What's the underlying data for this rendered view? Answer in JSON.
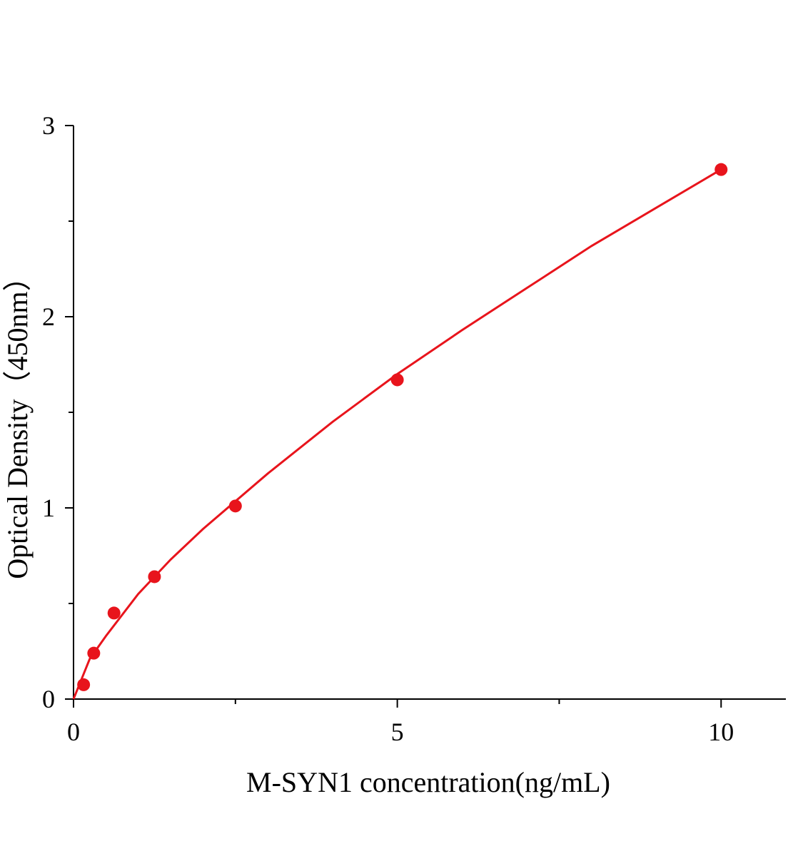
{
  "chart_data": {
    "type": "scatter",
    "x_label": "M-SYN1 concentration(ng/mL)",
    "y_label": "Optical Density（450nm）",
    "x": [
      0.156,
      0.3125,
      0.625,
      1.25,
      2.5,
      5,
      10
    ],
    "values": [
      0.075,
      0.24,
      0.45,
      0.64,
      1.01,
      1.67,
      2.77
    ],
    "color": "#e8141c",
    "fit": {
      "x": [
        0,
        0.25,
        0.5,
        1,
        1.5,
        2,
        3,
        4,
        5,
        6,
        7,
        8,
        9,
        10
      ],
      "values": [
        0,
        0.21,
        0.33,
        0.55,
        0.73,
        0.89,
        1.18,
        1.45,
        1.7,
        1.93,
        2.15,
        2.37,
        2.57,
        2.77
      ],
      "color": "#e8141c"
    },
    "xlim": [
      0,
      11
    ],
    "ylim": [
      0,
      3
    ],
    "xticks": [
      0,
      5,
      10
    ],
    "yticks": [
      0,
      1,
      2,
      3
    ],
    "xminorticks": [
      2.5,
      7.5
    ],
    "yminorticks": [
      0.5,
      1.5,
      2.5
    ]
  }
}
